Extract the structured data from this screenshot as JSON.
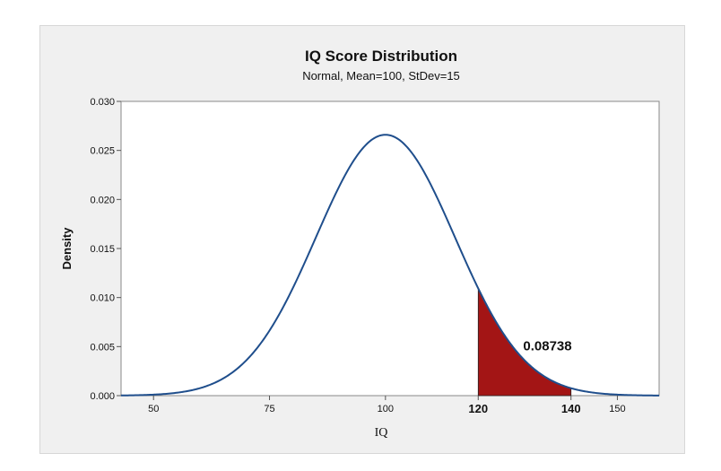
{
  "chart_data": {
    "type": "area",
    "title": "IQ Score Distribution",
    "subtitle": "Normal, Mean=100, StDev=15",
    "xlabel": "IQ",
    "ylabel": "Density",
    "distribution": {
      "mean": 100,
      "stdev": 15
    },
    "xlim": [
      43,
      159
    ],
    "ylim": [
      0,
      0.03
    ],
    "x_ticks": [
      50,
      75,
      100,
      150
    ],
    "x_ticks_bold": [
      120,
      140
    ],
    "y_ticks": [
      "0.000",
      "0.005",
      "0.010",
      "0.015",
      "0.020",
      "0.025",
      "0.030"
    ],
    "shaded_region": {
      "from": 120,
      "to": 140,
      "probability": "0.08738"
    },
    "grid": false,
    "colors": {
      "curve": "#1f4e8c",
      "shade": "#a31515",
      "plot_bg": "#ffffff",
      "frame_bg": "#f0f0f0"
    }
  }
}
